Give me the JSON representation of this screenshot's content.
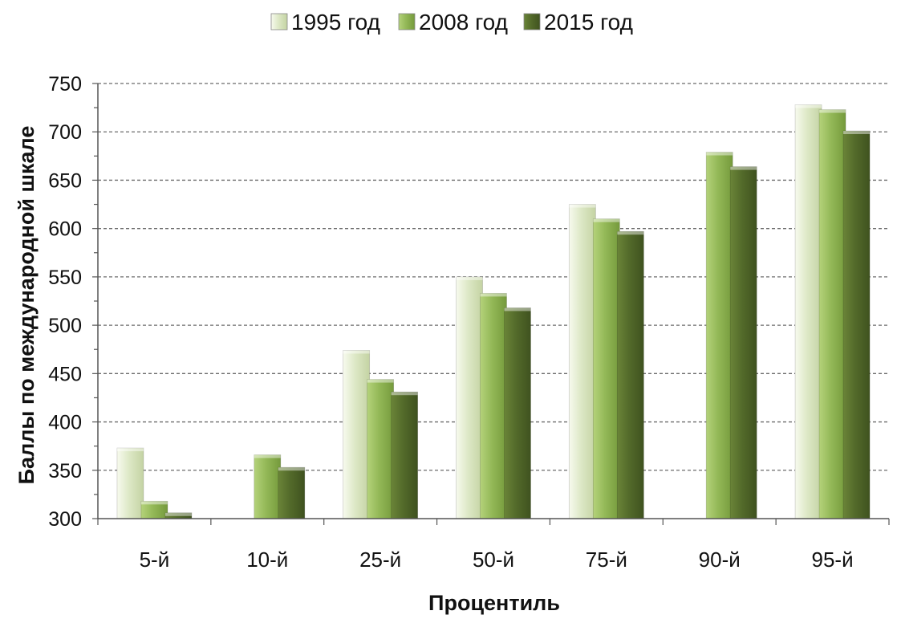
{
  "chart_data": {
    "type": "bar",
    "categories": [
      "5-й",
      "10-й",
      "25-й",
      "50-й",
      "75-й",
      "90-й",
      "95-й"
    ],
    "series": [
      {
        "name": "1995 год",
        "color": "#dde8c6",
        "values": [
          373,
          null,
          474,
          550,
          625,
          null,
          728
        ]
      },
      {
        "name": "2008 год",
        "color": "#93b857",
        "values": [
          318,
          366,
          444,
          533,
          610,
          679,
          723
        ]
      },
      {
        "name": "2015 год",
        "color": "#536a2a",
        "values": [
          306,
          353,
          431,
          518,
          597,
          664,
          701
        ]
      }
    ],
    "xlabel": "Процентиль",
    "ylabel": "Баллы по международной  шкале",
    "ylim": [
      300,
      750
    ],
    "yticks": [
      300,
      350,
      400,
      450,
      500,
      550,
      600,
      650,
      700,
      750
    ],
    "grid": true,
    "legend_position": "top"
  }
}
